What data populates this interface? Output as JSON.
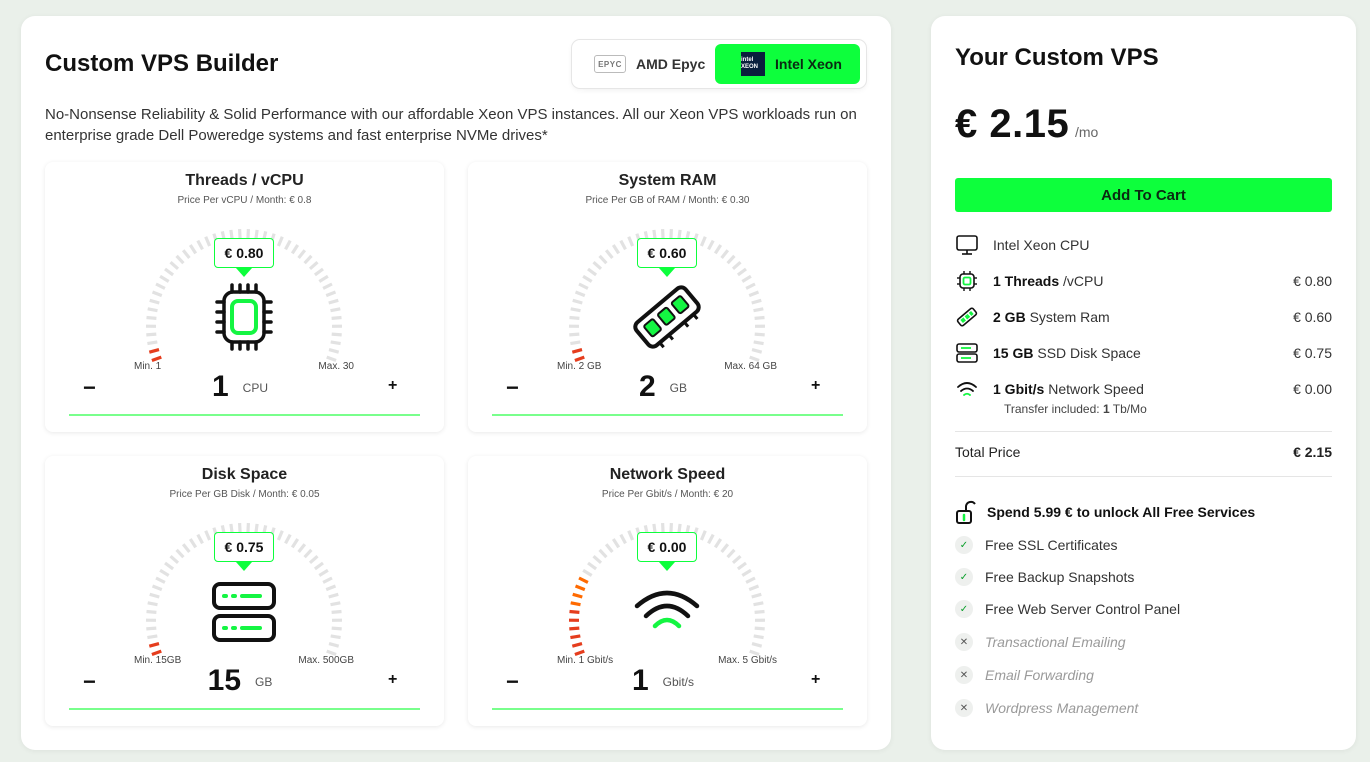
{
  "builder": {
    "title": "Custom VPS Builder",
    "description": "No-Nonsense Reliability & Solid Performance with our affordable Xeon VPS instances. All our Xeon VPS workloads run on enterprise grade Dell Poweredge systems and fast enterprise NVMe drives*",
    "cpu_options": [
      {
        "label": "AMD Epyc",
        "logo_text": "EPYC",
        "selected": false
      },
      {
        "label": "Intel Xeon",
        "logo_text": "intel XEON",
        "selected": true
      }
    ],
    "cards": [
      {
        "title": "Threads / vCPU",
        "subtitle": "Price Per vCPU / Month: € 0.8",
        "price": "€ 0.80",
        "min": "Min. 1",
        "max": "Max. 30",
        "value": "1",
        "unit": "CPU",
        "icon": "cpu-chip-icon",
        "level": 0.03
      },
      {
        "title": "System RAM",
        "subtitle": "Price Per GB of RAM / Month: € 0.30",
        "price": "€ 0.60",
        "min": "Min. 2 GB",
        "max": "Max. 64 GB",
        "value": "2",
        "unit": "GB",
        "icon": "ram-module-icon",
        "level": 0.03
      },
      {
        "title": "Disk Space",
        "subtitle": "Price Per GB Disk / Month: € 0.05",
        "price": "€ 0.75",
        "min": "Min. 15GB",
        "max": "Max. 500GB",
        "value": "15",
        "unit": "GB",
        "icon": "disk-drives-icon",
        "level": 0.03
      },
      {
        "title": "Network Speed",
        "subtitle": "Price Per Gbit/s / Month: € 20",
        "price": "€ 0.00",
        "min": "Min. 1 Gbit/s",
        "max": "Max. 5 Gbit/s",
        "value": "1",
        "unit": "Gbit/s",
        "icon": "wifi-icon",
        "level": 0.22
      }
    ],
    "minus_label": "−",
    "plus_label": "+"
  },
  "summary": {
    "title": "Your Custom VPS",
    "price": "€ 2.15",
    "per": "/mo",
    "add_to_cart": "Add To Cart",
    "cpu_line": "Intel Xeon CPU",
    "lines": [
      {
        "amount": "1 Threads",
        "label": " /vCPU",
        "value": "€ 0.80",
        "icon": "cpu-chip-icon"
      },
      {
        "amount": "2 GB",
        "label": " System Ram",
        "value": "€ 0.60",
        "icon": "ram-module-icon"
      },
      {
        "amount": "15 GB",
        "label": " SSD Disk Space",
        "value": "€ 0.75",
        "icon": "disk-drives-icon"
      },
      {
        "amount": "1 Gbit/s",
        "label": " Network Speed",
        "value": "€ 0.00",
        "icon": "wifi-icon"
      }
    ],
    "transfer_prefix": "Transfer included: ",
    "transfer_value": "1",
    "transfer_suffix": " Tb/Mo",
    "total_label": "Total Price",
    "total_value": "€ 2.15",
    "unlock_prefix": "Spend",
    "unlock_amount": "5.99 €",
    "unlock_suffix": "to unlock All Free Services",
    "features_included": [
      "Free SSL Certificates",
      "Free Backup Snapshots",
      "Free Web Server Control Panel"
    ],
    "features_locked": [
      "Transactional Emailing",
      "Email Forwarding",
      "Wordpress Management"
    ],
    "check_glyph": "✓",
    "cross_glyph": "✕"
  },
  "colors": {
    "accent": "#0dff3c",
    "gauge_tick": "#e2e2e2",
    "gauge_low": "#e53d1d",
    "gauge_mid": "#ff6a00"
  }
}
